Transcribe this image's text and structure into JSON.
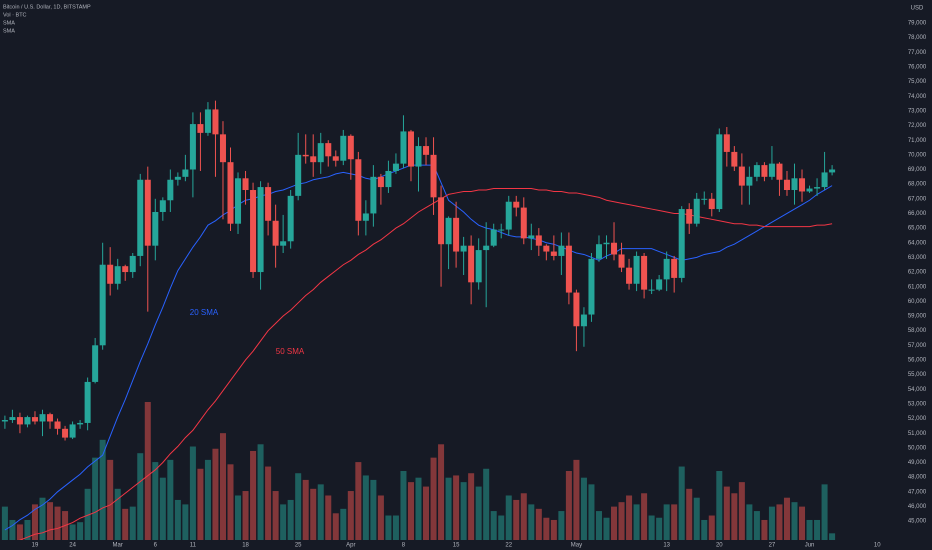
{
  "chart_data": {
    "type": "candlestick",
    "title": "Bitcoin / U.S. Dollar, 1D, BITSTAMP",
    "currency": "USD",
    "up_color": "#26a69a",
    "down_color": "#ef5350",
    "categories": [
      null,
      null,
      null,
      null,
      "19",
      null,
      null,
      null,
      null,
      "24",
      null,
      null,
      null,
      null,
      null,
      "Mar",
      null,
      null,
      null,
      null,
      "6",
      null,
      null,
      null,
      null,
      "11",
      null,
      null,
      null,
      null,
      null,
      null,
      "18",
      null,
      null,
      null,
      null,
      null,
      null,
      "25",
      null,
      null,
      null,
      null,
      null,
      null,
      "Apr",
      null,
      null,
      null,
      null,
      null,
      null,
      "8",
      null,
      null,
      null,
      null,
      null,
      null,
      "15",
      null,
      null,
      null,
      null,
      null,
      null,
      "22",
      null,
      null,
      null,
      null,
      null,
      null,
      null,
      null,
      "May",
      null,
      null,
      null,
      null,
      null,
      null,
      null,
      null,
      null,
      null,
      null,
      "13",
      null,
      null,
      null,
      null,
      null,
      null,
      "20",
      null,
      null,
      null,
      null,
      null,
      null,
      "27",
      null,
      null,
      null,
      null,
      "Jun",
      null,
      null,
      null,
      null,
      null,
      null,
      null,
      null,
      "10"
    ],
    "open": [
      51800,
      51900,
      52100,
      51600,
      52100,
      51800,
      52300,
      51800,
      51300,
      50700,
      51600,
      51700,
      54500,
      57000,
      62500,
      61200,
      62400,
      62000,
      63100,
      68300,
      63800,
      66100,
      66900,
      68300,
      68500,
      69000,
      72100,
      71500,
      73100,
      71400,
      69500,
      65300,
      68400,
      67600,
      62000,
      67800,
      65500,
      63800,
      64100,
      67200,
      70000,
      69900,
      69500,
      70800,
      69900,
      69600,
      71300,
      69700,
      65500,
      66000,
      68500,
      67800,
      68900,
      69400,
      71600,
      69200,
      70600,
      70000,
      67100,
      63900,
      65700,
      63400,
      63800,
      61300,
      63500,
      63800,
      64900,
      64900,
      66800,
      66400,
      64300,
      64500,
      63800,
      63400,
      63100,
      63800,
      60600,
      58300,
      59100,
      62900,
      63900,
      64000,
      63200,
      62300,
      61200,
      63100,
      60800,
      60800,
      61500,
      62900,
      61600,
      66300,
      65300,
      67000,
      67000,
      66300,
      71400,
      70200,
      69200,
      67900,
      68500,
      69300,
      68500,
      69400,
      68300,
      67600,
      68400,
      67500,
      67700,
      67800,
      68800,
      null,
      null,
      null,
      null,
      null,
      null
    ],
    "high": [
      52200,
      52600,
      52400,
      52200,
      52500,
      52600,
      52400,
      52000,
      51500,
      51800,
      51900,
      54800,
      57500,
      64000,
      63700,
      62900,
      62500,
      63300,
      68700,
      69200,
      67000,
      67100,
      69000,
      68800,
      70000,
      72900,
      72900,
      73600,
      73700,
      72300,
      70500,
      68800,
      68900,
      68100,
      68200,
      68100,
      66600,
      65900,
      67600,
      71500,
      71400,
      71400,
      71500,
      71000,
      70300,
      71700,
      71400,
      70200,
      66900,
      69300,
      68700,
      69600,
      70100,
      72700,
      71700,
      71200,
      71200,
      71200,
      67900,
      65800,
      66800,
      64400,
      64500,
      64300,
      65400,
      65300,
      65300,
      67200,
      67200,
      67100,
      65300,
      65000,
      63900,
      64500,
      64700,
      64700,
      60800,
      59600,
      63300,
      64500,
      64500,
      65400,
      64000,
      62900,
      63400,
      63300,
      61500,
      61800,
      63400,
      63100,
      66500,
      66700,
      67400,
      67500,
      67400,
      71800,
      71900,
      70600,
      70100,
      69200,
      69500,
      69500,
      70600,
      69500,
      68900,
      69400,
      69000,
      67900,
      68400,
      70200,
      69300,
      null,
      null,
      null,
      null,
      null,
      null
    ],
    "low": [
      51300,
      51700,
      51000,
      51400,
      51600,
      50800,
      51300,
      50900,
      50500,
      50600,
      51300,
      51200,
      54400,
      56700,
      60400,
      60800,
      61400,
      61600,
      62400,
      59300,
      62800,
      65500,
      66100,
      67900,
      68200,
      67100,
      68900,
      71300,
      68500,
      65600,
      64800,
      64600,
      66600,
      61600,
      60800,
      64500,
      62300,
      63300,
      63600,
      66900,
      69400,
      68500,
      68700,
      69200,
      69200,
      69300,
      68300,
      64500,
      64500,
      65100,
      66600,
      67400,
      68700,
      69100,
      68200,
      67500,
      69300,
      65900,
      61000,
      62200,
      62300,
      61800,
      59800,
      60800,
      59600,
      63700,
      64300,
      64500,
      65800,
      63900,
      63500,
      63100,
      62800,
      62800,
      61800,
      59800,
      56600,
      56900,
      58600,
      62700,
      62900,
      62800,
      62000,
      60800,
      60700,
      60200,
      60500,
      60700,
      60700,
      60600,
      61300,
      64600,
      65100,
      66600,
      65800,
      66100,
      69200,
      68900,
      66600,
      66600,
      68200,
      68200,
      68300,
      67200,
      67200,
      66600,
      66800,
      67400,
      67200,
      67600,
      68600,
      null,
      null,
      null,
      null,
      null,
      null
    ],
    "close": [
      51900,
      52100,
      51600,
      52100,
      51800,
      52300,
      51800,
      51300,
      50700,
      51600,
      51700,
      54500,
      57000,
      62500,
      61200,
      62400,
      62000,
      63100,
      68300,
      63800,
      66100,
      66900,
      68300,
      68500,
      69000,
      72100,
      71500,
      73100,
      71400,
      69500,
      65300,
      68400,
      67600,
      62000,
      67800,
      65500,
      63800,
      64100,
      67200,
      70000,
      69900,
      69500,
      70800,
      69900,
      69600,
      71300,
      69700,
      65500,
      66000,
      68500,
      67800,
      68900,
      69400,
      71600,
      69200,
      70600,
      70000,
      67100,
      63900,
      65700,
      63400,
      63800,
      61300,
      63500,
      63800,
      64900,
      64900,
      66800,
      66400,
      64300,
      64500,
      63800,
      63400,
      63100,
      63800,
      60600,
      58300,
      59100,
      62900,
      63900,
      64000,
      63200,
      62300,
      61200,
      63100,
      60800,
      60800,
      61500,
      62900,
      61600,
      66300,
      65300,
      67000,
      67000,
      66300,
      71400,
      70200,
      69200,
      67900,
      68500,
      69300,
      68500,
      69400,
      68300,
      67600,
      68400,
      67500,
      67700,
      67800,
      68800,
      69000,
      null,
      null,
      null,
      null,
      null,
      null
    ],
    "volume": {
      "name": "Vol · BTC",
      "values": [
        1500,
        900,
        700,
        900,
        1600,
        1900,
        1700,
        1500,
        1300,
        700,
        800,
        2300,
        3700,
        4500,
        3600,
        2300,
        1400,
        1500,
        3900,
        6200,
        3500,
        2800,
        3600,
        1800,
        1600,
        4200,
        3200,
        3600,
        4100,
        4800,
        3400,
        2000,
        2200,
        4000,
        4300,
        3300,
        2200,
        1600,
        1800,
        3000,
        2700,
        2300,
        2500,
        2000,
        1200,
        1400,
        2200,
        3500,
        2900,
        2700,
        2000,
        1100,
        1100,
        3100,
        2600,
        2800,
        2400,
        3700,
        4300,
        2800,
        2900,
        2600,
        3000,
        2400,
        3200,
        1300,
        1100,
        2000,
        1800,
        2100,
        1600,
        1400,
        1000,
        900,
        1300,
        3100,
        3600,
        2800,
        2500,
        1300,
        1000,
        1500,
        1700,
        2000,
        1600,
        2100,
        1100,
        1000,
        1600,
        1600,
        3300,
        2300,
        1900,
        900,
        1100,
        3100,
        2400,
        2100,
        2600,
        1600,
        1300,
        900,
        1500,
        1600,
        1900,
        1700,
        1500,
        900,
        900,
        2500,
        300,
        null,
        null,
        null,
        null,
        null,
        null
      ]
    },
    "series": [
      {
        "name": "SMA",
        "color": "#2962ff",
        "values": [
          44400,
          44700,
          45100,
          45400,
          45800,
          46100,
          46500,
          47000,
          47400,
          47800,
          48200,
          48700,
          49100,
          49500,
          50800,
          52100,
          53300,
          54600,
          55900,
          57100,
          58400,
          59600,
          60900,
          62100,
          62900,
          63700,
          64400,
          65200,
          65500,
          65900,
          66200,
          66600,
          66900,
          67000,
          67200,
          67300,
          67500,
          67600,
          67800,
          68000,
          68100,
          68300,
          68400,
          68500,
          68700,
          68800,
          68700,
          68600,
          68400,
          68300,
          68500,
          68700,
          68900,
          69100,
          69300,
          69300,
          69300,
          69300,
          68100,
          66900,
          66500,
          66100,
          65600,
          65200,
          65000,
          64900,
          64700,
          64500,
          64400,
          64400,
          64300,
          64200,
          64000,
          63900,
          63700,
          63500,
          63300,
          63200,
          63000,
          62800,
          63100,
          63300,
          63600,
          63600,
          63600,
          63600,
          63600,
          63400,
          63200,
          63000,
          62800,
          62900,
          63000,
          63200,
          63300,
          63400,
          63700,
          63900,
          64200,
          64500,
          64800,
          65100,
          65400,
          65700,
          66000,
          66300,
          66600,
          66900,
          67300,
          67600,
          67900,
          null,
          null,
          null,
          null,
          null,
          null
        ]
      },
      {
        "name": "SMA",
        "color": "#f23645",
        "values": [
          43400,
          43600,
          43700,
          43900,
          44100,
          44200,
          44400,
          44500,
          44700,
          44900,
          45200,
          45400,
          45600,
          45900,
          46100,
          46500,
          46900,
          47300,
          47700,
          48100,
          48500,
          49000,
          49600,
          50100,
          50700,
          51200,
          51900,
          52600,
          53200,
          53900,
          54600,
          55300,
          56000,
          56600,
          57300,
          58000,
          58500,
          59000,
          59400,
          59900,
          60400,
          60800,
          61300,
          61700,
          62100,
          62500,
          62800,
          63200,
          63500,
          63900,
          64200,
          64600,
          65000,
          65300,
          65700,
          66100,
          66400,
          66700,
          67000,
          67300,
          67400,
          67500,
          67500,
          67600,
          67600,
          67700,
          67700,
          67700,
          67700,
          67700,
          67700,
          67600,
          67600,
          67500,
          67500,
          67400,
          67400,
          67300,
          67200,
          67100,
          66900,
          66800,
          66700,
          66600,
          66500,
          66400,
          66300,
          66200,
          66100,
          66000,
          66000,
          65900,
          65800,
          65700,
          65600,
          65500,
          65400,
          65300,
          65300,
          65200,
          65200,
          65100,
          65100,
          65100,
          65100,
          65100,
          65100,
          65100,
          65200,
          65200,
          65300,
          null,
          null,
          null,
          null,
          null,
          null
        ]
      }
    ],
    "annotations": [
      {
        "text": "20 SMA"
      },
      {
        "text": "50 SMA"
      }
    ],
    "ylim": [
      43710,
      80570
    ],
    "yticks": [
      {
        "value": 45000,
        "label": "45,000"
      },
      {
        "value": 46000,
        "label": "46,000"
      },
      {
        "value": 47000,
        "label": "47,000"
      },
      {
        "value": 48000,
        "label": "48,000"
      },
      {
        "value": 49000,
        "label": "49,000"
      },
      {
        "value": 50000,
        "label": "50,000"
      },
      {
        "value": 51000,
        "label": "51,000"
      },
      {
        "value": 52000,
        "label": "52,000"
      },
      {
        "value": 53000,
        "label": "53,000"
      },
      {
        "value": 54000,
        "label": "54,000"
      },
      {
        "value": 55000,
        "label": "55,000"
      },
      {
        "value": 56000,
        "label": "56,000"
      },
      {
        "value": 57000,
        "label": "57,000"
      },
      {
        "value": 58000,
        "label": "58,000"
      },
      {
        "value": 59000,
        "label": "59,000"
      },
      {
        "value": 60000,
        "label": "60,000"
      },
      {
        "value": 61000,
        "label": "61,000"
      },
      {
        "value": 62000,
        "label": "62,000"
      },
      {
        "value": 63000,
        "label": "63,000"
      },
      {
        "value": 64000,
        "label": "64,000"
      },
      {
        "value": 65000,
        "label": "65,000"
      },
      {
        "value": 66000,
        "label": "66,000"
      },
      {
        "value": 67000,
        "label": "67,000"
      },
      {
        "value": 68000,
        "label": "68,000"
      },
      {
        "value": 69000,
        "label": "69,000"
      },
      {
        "value": 70000,
        "label": "70,000"
      },
      {
        "value": 71000,
        "label": "71,000"
      },
      {
        "value": 72000,
        "label": "72,000"
      },
      {
        "value": 73000,
        "label": "73,000"
      },
      {
        "value": 74000,
        "label": "74,000"
      },
      {
        "value": 75000,
        "label": "75,000"
      },
      {
        "value": 76000,
        "label": "76,000"
      },
      {
        "value": 77000,
        "label": "77,000"
      },
      {
        "value": 78000,
        "label": "78,000"
      },
      {
        "value": 79000,
        "label": "79,000"
      }
    ],
    "grid": false
  }
}
